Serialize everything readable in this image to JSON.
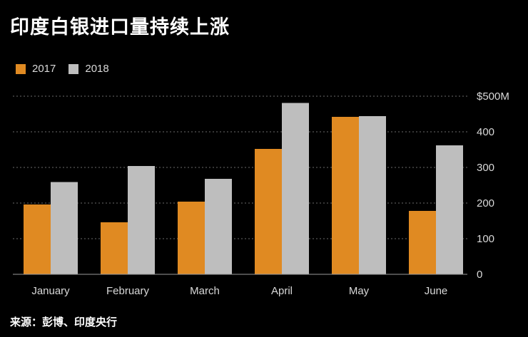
{
  "title": "印度白银进口量持续上涨",
  "source": "来源：彭博、印度央行",
  "colors": {
    "s2017": "#E08A22",
    "s2018": "#BEBEBE",
    "grid": "#6b6b6b",
    "axis": "#9a9a9a",
    "background": "#000000"
  },
  "chart_data": {
    "type": "bar",
    "title": "印度白银进口量持续上涨",
    "categories": [
      "January",
      "February",
      "March",
      "April",
      "May",
      "June"
    ],
    "series": [
      {
        "name": "2017",
        "values": [
          196,
          146,
          204,
          352,
          442,
          178
        ]
      },
      {
        "name": "2018",
        "values": [
          259,
          304,
          268,
          481,
          444,
          362
        ]
      }
    ],
    "ylim": [
      0,
      500
    ],
    "yticks": [
      0,
      100,
      200,
      300,
      400,
      500
    ],
    "ytick_labels": [
      "0",
      "100",
      "200",
      "300",
      "400",
      "$500M"
    ],
    "grid": true,
    "legend": "top-left",
    "y_axis_side": "right"
  }
}
